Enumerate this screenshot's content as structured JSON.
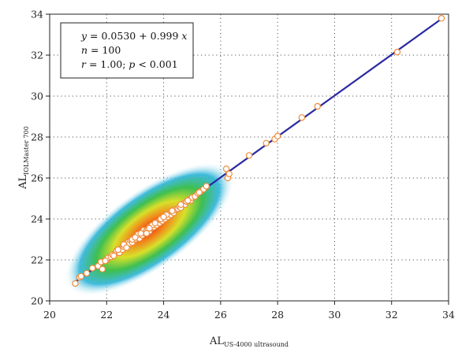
{
  "chart_data": {
    "type": "scatter",
    "xlabel": {
      "main": "AL",
      "sub": "US-4000 ultrasound"
    },
    "ylabel": {
      "main": "AL",
      "sub": "IOLMaster 700"
    },
    "xlim": [
      20,
      34
    ],
    "ylim": [
      20,
      34
    ],
    "xticks": [
      20,
      22,
      24,
      26,
      28,
      30,
      32,
      34
    ],
    "yticks": [
      20,
      22,
      24,
      26,
      28,
      30,
      32,
      34
    ],
    "grid": true,
    "grid_style": "dotted",
    "legend": "none",
    "annotation": {
      "equation": {
        "lhs": "y",
        "rhs": " = 0.0530 + 0.999 ",
        "var": "x"
      },
      "n": {
        "label": "n",
        "value": " = 100"
      },
      "r": {
        "label": "r",
        "value": " = 1.00; ",
        "p_label": "p",
        "p_value": " < 0.001"
      }
    },
    "regression": {
      "intercept": 0.053,
      "slope": 0.999,
      "x_range": [
        20.85,
        33.75
      ],
      "color": "#2a2aa0"
    },
    "density_overlay": {
      "center": [
        23.5,
        23.5
      ],
      "colormap": [
        "#2bb3d9",
        "#3fbf4f",
        "#d8e02a",
        "#f08a1c",
        "#e83214"
      ]
    },
    "marker": {
      "fill": "#ffffff",
      "edge": "#f08a3a"
    },
    "series": [
      {
        "x": [
          20.9,
          21.05,
          21.1,
          21.3,
          21.5,
          21.7,
          21.8,
          21.85,
          22.0,
          22.05,
          22.15,
          22.2,
          22.3,
          22.35,
          22.45,
          22.5,
          22.55,
          22.6,
          22.7,
          22.75,
          22.8,
          22.85,
          22.9,
          22.95,
          23.0,
          23.05,
          23.1,
          23.15,
          23.2,
          23.25,
          23.3,
          23.3,
          23.35,
          23.4,
          23.45,
          23.5,
          23.5,
          23.55,
          23.6,
          23.65,
          23.7,
          23.75,
          23.8,
          23.85,
          23.9,
          23.95,
          24.0,
          24.05,
          24.1,
          24.15,
          24.2,
          24.25,
          24.3,
          24.35,
          24.4,
          24.5,
          24.55,
          24.6,
          24.7,
          24.75,
          24.8,
          24.9,
          24.95,
          25.0,
          25.1,
          25.2,
          25.3,
          25.4,
          25.5,
          22.4,
          22.6,
          22.9,
          23.1,
          23.4,
          23.6,
          23.9,
          24.1,
          24.3,
          24.6,
          23.2,
          23.7,
          24.0,
          22.7,
          23.0,
          23.5,
          26.2,
          26.25,
          26.3,
          27.0,
          27.6,
          27.9,
          28.0,
          28.85,
          29.4,
          32.2,
          33.75,
          24.85,
          22.25,
          21.95,
          25.25
        ],
        "y": [
          20.85,
          21.15,
          21.2,
          21.35,
          21.6,
          21.7,
          21.9,
          21.55,
          22.0,
          22.1,
          22.15,
          22.25,
          22.3,
          22.45,
          22.35,
          22.55,
          22.5,
          22.65,
          22.7,
          22.85,
          22.8,
          22.95,
          22.85,
          23.05,
          23.0,
          23.1,
          23.15,
          23.05,
          23.25,
          23.2,
          23.35,
          23.45,
          23.3,
          23.45,
          23.5,
          23.4,
          23.6,
          23.55,
          23.65,
          23.6,
          23.75,
          23.7,
          23.85,
          23.8,
          23.95,
          23.9,
          24.05,
          24.0,
          24.15,
          24.1,
          24.25,
          24.2,
          24.35,
          24.3,
          24.45,
          24.5,
          24.6,
          24.55,
          24.75,
          24.7,
          24.85,
          24.95,
          24.9,
          25.05,
          25.1,
          25.25,
          25.35,
          25.45,
          25.6,
          22.5,
          22.75,
          23.0,
          23.25,
          23.3,
          23.7,
          24.0,
          24.2,
          24.4,
          24.7,
          23.3,
          23.8,
          24.1,
          22.6,
          23.1,
          23.55,
          26.45,
          26.0,
          26.2,
          27.1,
          27.7,
          27.9,
          28.05,
          28.95,
          29.5,
          32.15,
          33.8,
          24.9,
          22.2,
          21.95,
          25.3
        ]
      }
    ]
  }
}
